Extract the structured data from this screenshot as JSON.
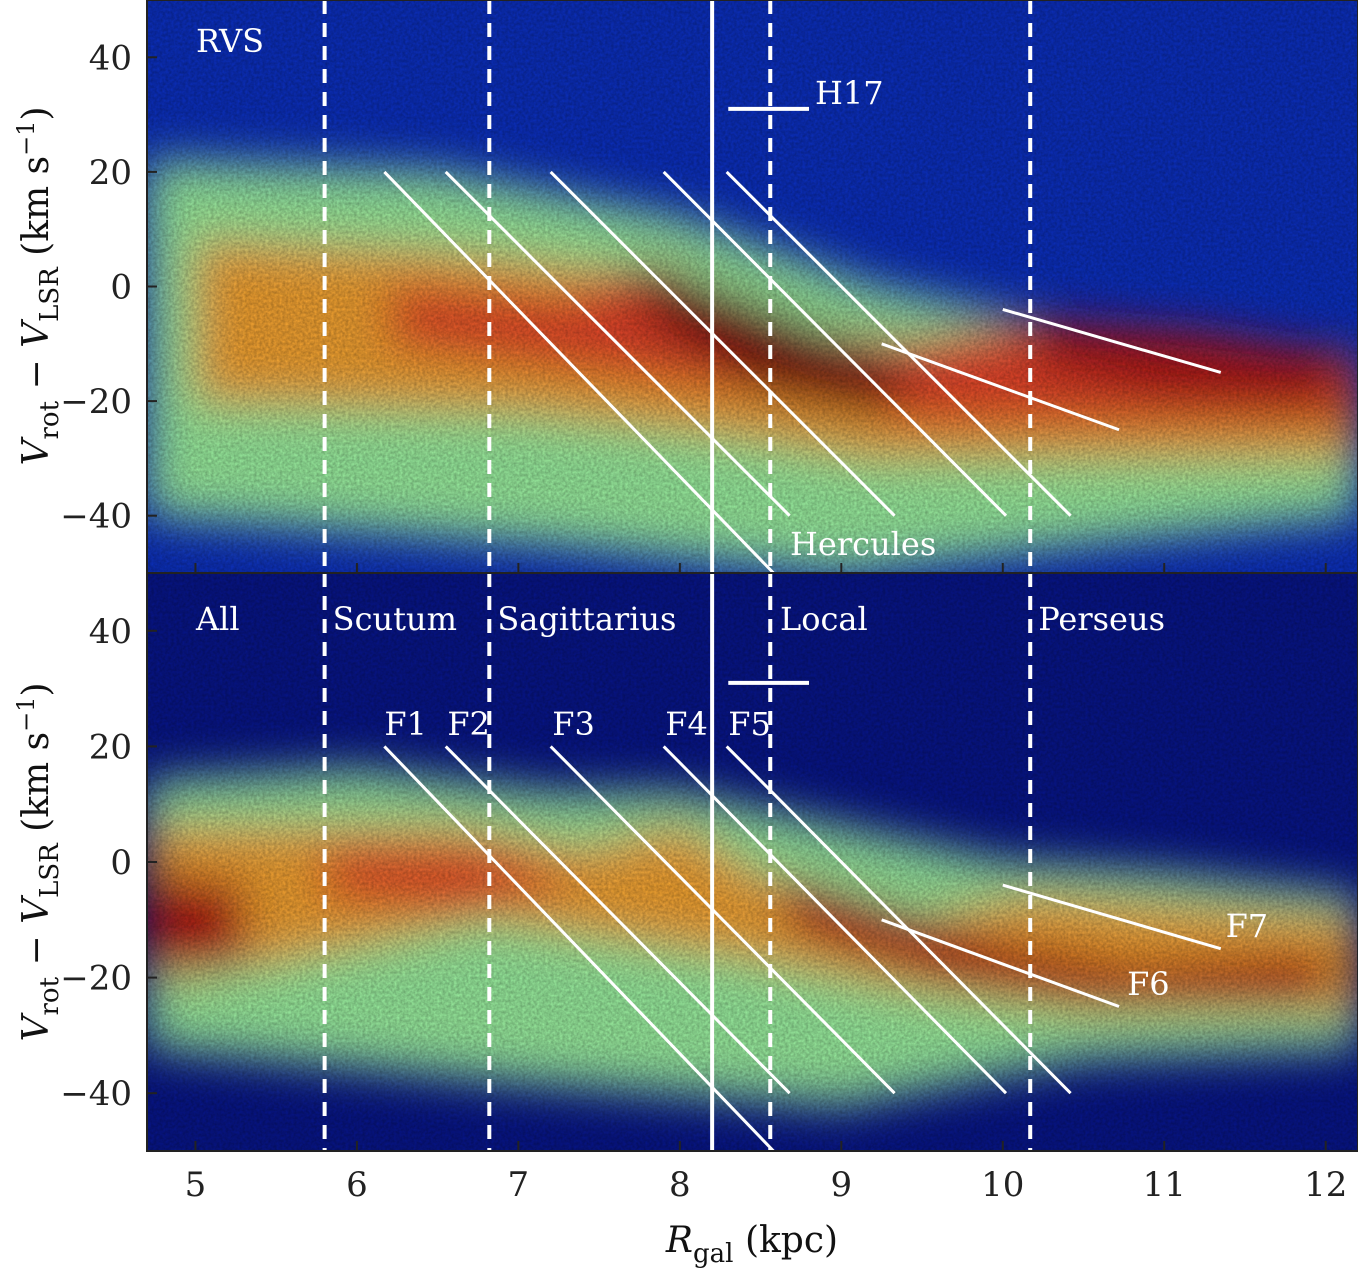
{
  "chart_data": [
    {
      "type": "heatmap",
      "panel_label": "RVS",
      "ylabel_parts": {
        "v1": "V",
        "s1": "rot",
        "minus": " − ",
        "v2": "V",
        "s2": "LSR",
        "unit": " (km s",
        "exp": "−1",
        "close": ")"
      },
      "xlim": [
        4.7,
        12.2
      ],
      "ylim": [
        -50,
        50
      ],
      "yticks": [
        "40",
        "20",
        "0",
        "−20",
        "−40"
      ],
      "colormap": [
        "#081d9c",
        "#0f4bd8",
        "#2b8ef0",
        "#48d1e6",
        "#9bf0a0",
        "#f5f55a",
        "#f7a531",
        "#e8442a",
        "#b01712",
        "#7a0c0c"
      ],
      "ridge_lines": [
        {
          "name": "F1",
          "x": [
            6.17,
            8.58
          ],
          "y": [
            20,
            -50
          ]
        },
        {
          "name": "F2",
          "x": [
            6.55,
            8.68
          ],
          "y": [
            20,
            -40
          ]
        },
        {
          "name": "F3",
          "x": [
            7.2,
            9.33
          ],
          "y": [
            20,
            -40
          ]
        },
        {
          "name": "F4",
          "x": [
            7.9,
            10.02
          ],
          "y": [
            20,
            -40
          ]
        },
        {
          "name": "F5",
          "x": [
            8.29,
            10.42
          ],
          "y": [
            20,
            -40
          ]
        },
        {
          "name": "F6",
          "x": [
            9.25,
            10.72
          ],
          "y": [
            -10,
            -25
          ]
        },
        {
          "name": "F7",
          "x": [
            10.0,
            11.35
          ],
          "y": [
            -4,
            -15
          ]
        }
      ],
      "vertical_lines": {
        "solid_x": 8.2,
        "dashed_x": [
          5.8,
          6.82,
          8.56,
          10.17
        ]
      },
      "h17_bar": {
        "x": [
          8.3,
          8.8
        ],
        "y": 31,
        "label": "H17"
      },
      "annotations": [
        {
          "text": "Hercules",
          "x": 8.65,
          "y": -45
        }
      ]
    },
    {
      "type": "heatmap",
      "panel_label": "All",
      "ylabel_parts": {
        "v1": "V",
        "s1": "rot",
        "minus": " − ",
        "v2": "V",
        "s2": "LSR",
        "unit": " (km s",
        "exp": "−1",
        "close": ")"
      },
      "xlabel_parts": {
        "v": "R",
        "s": "gal",
        "unit": " (kpc)"
      },
      "xlim": [
        4.7,
        12.2
      ],
      "ylim": [
        -50,
        50
      ],
      "xticks": [
        "5",
        "6",
        "7",
        "8",
        "9",
        "10",
        "11",
        "12"
      ],
      "yticks": [
        "40",
        "20",
        "0",
        "−20",
        "−40"
      ],
      "arm_labels": [
        {
          "text": "Scutum",
          "x": 5.85
        },
        {
          "text": "Sagittarius",
          "x": 6.87
        },
        {
          "text": "Local",
          "x": 8.62
        },
        {
          "text": "Perseus",
          "x": 10.22
        }
      ],
      "feature_labels": [
        {
          "text": "F1",
          "x": 6.17,
          "y": 22
        },
        {
          "text": "F2",
          "x": 6.56,
          "y": 22
        },
        {
          "text": "F3",
          "x": 7.21,
          "y": 22
        },
        {
          "text": "F4",
          "x": 7.91,
          "y": 22
        },
        {
          "text": "F5",
          "x": 8.3,
          "y": 22
        },
        {
          "text": "F6",
          "x": 10.77,
          "y": -23
        },
        {
          "text": "F7",
          "x": 11.38,
          "y": -13
        }
      ]
    }
  ]
}
